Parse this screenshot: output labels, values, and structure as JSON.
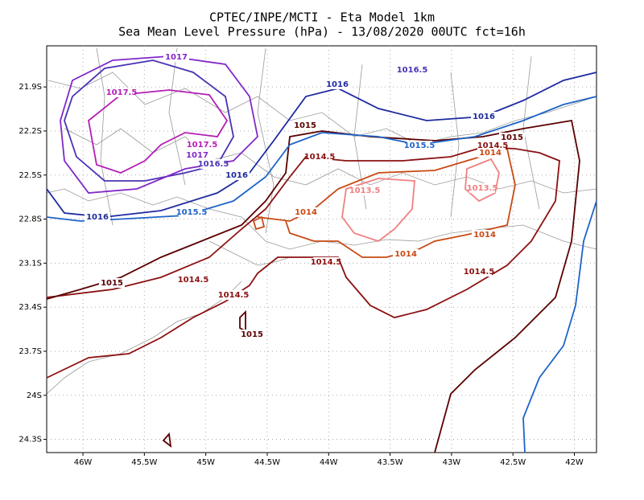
{
  "map": {
    "title": "CPTEC/INPE/MCTI -  Eta Model 1km",
    "subtitle": "Sea Mean Level Pressure (hPa) - 13/08/2020 00UTC fct=16h",
    "xlim": [
      -46.295,
      -41.82
    ],
    "ylim": [
      -24.39,
      -21.62
    ],
    "xticks": [
      {
        "value": -46,
        "label": "46W"
      },
      {
        "value": -45.5,
        "label": "45.5W"
      },
      {
        "value": -45,
        "label": "45W"
      },
      {
        "value": -44.5,
        "label": "44.5W"
      },
      {
        "value": -44,
        "label": "44W"
      },
      {
        "value": -43.5,
        "label": "43.5W"
      },
      {
        "value": -43,
        "label": "43W"
      },
      {
        "value": -42.5,
        "label": "42.5W"
      },
      {
        "value": -42,
        "label": "42W"
      }
    ],
    "yticks": [
      {
        "value": -21.9,
        "label": "21.9S"
      },
      {
        "value": -22.2,
        "label": "22.2S"
      },
      {
        "value": -22.5,
        "label": "22.5S"
      },
      {
        "value": -22.8,
        "label": "22.8S"
      },
      {
        "value": -23.1,
        "label": "23.1S"
      },
      {
        "value": -23.4,
        "label": "23.4S"
      },
      {
        "value": -23.7,
        "label": "23.7S"
      },
      {
        "value": -24,
        "label": "24S"
      },
      {
        "value": -24.3,
        "label": "24.3S"
      }
    ],
    "grid": true,
    "levels": [
      {
        "value": 1013.5,
        "color": "#f08080"
      },
      {
        "value": 1014,
        "color": "#c84a14"
      },
      {
        "value": 1014.5,
        "color": "#8c1010"
      },
      {
        "value": 1015,
        "color": "#5a0000"
      },
      {
        "value": 1015.5,
        "color": "#1e64c8"
      },
      {
        "value": 1016,
        "color": "#1e2aa0"
      },
      {
        "value": 1016.5,
        "color": "#4a32b4"
      },
      {
        "value": 1017,
        "color": "#8228c8"
      },
      {
        "value": 1017.5,
        "color": "#b41eb4"
      }
    ],
    "contour_labels": [
      1017,
      1016.5,
      1017.5,
      1016,
      1016,
      1015,
      1015,
      1014.5,
      1014,
      1014.5,
      1015.5,
      1017.5,
      1017,
      1016.5,
      1016,
      1013.5,
      1013.5,
      1014,
      1016,
      1015.5,
      1014,
      1014,
      1014.5,
      1015,
      1014.5,
      1014.5,
      1014.5,
      1015
    ]
  }
}
